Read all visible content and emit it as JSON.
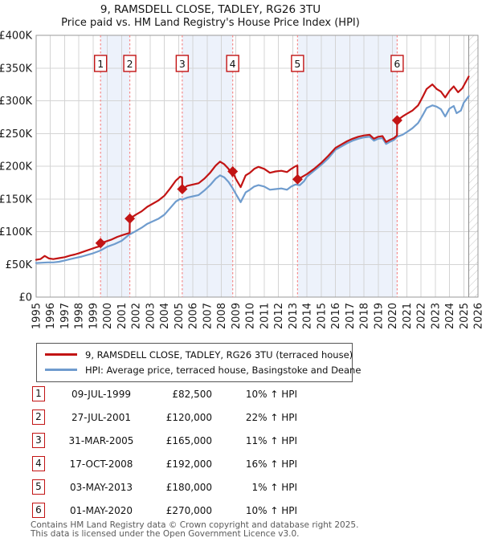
{
  "title": {
    "line1": "9, RAMSDELL CLOSE, TADLEY, RG26 3TU",
    "line2": "Price paid vs. HM Land Registry's House Price Index (HPI)"
  },
  "legend": [
    {
      "label": "9, RAMSDELL CLOSE, TADLEY, RG26 3TU (terraced house)",
      "color": "#c21414",
      "thickness": 3
    },
    {
      "label": "HPI: Average price, terraced house, Basingstoke and Deane",
      "color": "#6f9cce",
      "thickness": 2.5
    }
  ],
  "footer": {
    "line1": "Contains HM Land Registry data © Crown copyright and database right 2025.",
    "line2": "This data is licensed under the Open Government Licence v3.0."
  },
  "chart_data": {
    "type": "line",
    "title": "9, RAMSDELL CLOSE, TADLEY, RG26 3TU",
    "subtitle": "Price paid vs. HM Land Registry's House Price Index (HPI)",
    "grid": true,
    "legend_position": "below",
    "x_axis": {
      "min": 1995,
      "max": 2026,
      "tick_years": [
        1995,
        1996,
        1997,
        1998,
        1999,
        2000,
        2001,
        2002,
        2003,
        2004,
        2005,
        2006,
        2007,
        2008,
        2009,
        2010,
        2011,
        2012,
        2013,
        2014,
        2015,
        2016,
        2017,
        2018,
        2019,
        2020,
        2021,
        2022,
        2023,
        2024,
        2025,
        2026
      ]
    },
    "y_axis": {
      "min": 0,
      "max": 400000,
      "tick_step": 50000,
      "tick_labels": [
        "£0",
        "£50K",
        "£100K",
        "£150K",
        "£200K",
        "£250K",
        "£300K",
        "£350K",
        "£400K"
      ]
    },
    "colors": {
      "price_line": "#c21414",
      "hpi_line": "#6f9cce",
      "sale_marker": "#c21414",
      "dashed_line": "#f58a8a",
      "band_fill": "#edf2fb",
      "grid": "#d4d4d4",
      "plot_border": "#9a9a9a",
      "hatch_line": "#c6c6c6",
      "hatch_edge": "#8f8f8f",
      "marker_box_border": "#c21414",
      "axis_text": "#1a1a1a"
    },
    "ownership_bands": [
      [
        1999.52,
        2001.57
      ],
      [
        2005.25,
        2008.79
      ],
      [
        2013.34,
        2020.33
      ]
    ],
    "no_data_hatch_from": 2025.35,
    "sales": [
      {
        "n": 1,
        "date": "09-JUL-1999",
        "year": 1999.52,
        "price": 82500,
        "price_label": "£82,500",
        "hpi_diff": "10% ↑ HPI"
      },
      {
        "n": 2,
        "date": "27-JUL-2001",
        "year": 2001.57,
        "price": 120000,
        "price_label": "£120,000",
        "hpi_diff": "22% ↑ HPI"
      },
      {
        "n": 3,
        "date": "31-MAR-2005",
        "year": 2005.25,
        "price": 165000,
        "price_label": "£165,000",
        "hpi_diff": "11% ↑ HPI"
      },
      {
        "n": 4,
        "date": "17-OCT-2008",
        "year": 2008.79,
        "price": 192000,
        "price_label": "£192,000",
        "hpi_diff": "16% ↑ HPI"
      },
      {
        "n": 5,
        "date": "03-MAY-2013",
        "year": 2013.34,
        "price": 180000,
        "price_label": "£180,000",
        "hpi_diff": "1% ↑ HPI"
      },
      {
        "n": 6,
        "date": "01-MAY-2020",
        "year": 2020.33,
        "price": 270000,
        "price_label": "£270,000",
        "hpi_diff": "10% ↑ HPI"
      }
    ],
    "series": [
      {
        "name": "9, RAMSDELL CLOSE, TADLEY, RG26 3TU (terraced house)",
        "color": "#c21414",
        "width": 2.2,
        "points": [
          [
            1995.0,
            57000
          ],
          [
            1995.3,
            58000
          ],
          [
            1995.6,
            63000
          ],
          [
            1995.9,
            59000
          ],
          [
            1996.2,
            58000
          ],
          [
            1996.6,
            59500
          ],
          [
            1997.0,
            61000
          ],
          [
            1997.4,
            63500
          ],
          [
            1997.7,
            65000
          ],
          [
            1998.0,
            67000
          ],
          [
            1998.4,
            70000
          ],
          [
            1998.8,
            73000
          ],
          [
            1999.2,
            76000
          ],
          [
            1999.51,
            78000
          ],
          [
            1999.52,
            82500
          ],
          [
            1999.9,
            85000
          ],
          [
            2000.3,
            88000
          ],
          [
            2000.7,
            92000
          ],
          [
            2001.1,
            95000
          ],
          [
            2001.56,
            98000
          ],
          [
            2001.57,
            120000
          ],
          [
            2002.0,
            126000
          ],
          [
            2002.4,
            131000
          ],
          [
            2002.8,
            138000
          ],
          [
            2003.2,
            143000
          ],
          [
            2003.6,
            148000
          ],
          [
            2004.0,
            155000
          ],
          [
            2004.4,
            166000
          ],
          [
            2004.8,
            178000
          ],
          [
            2005.1,
            184000
          ],
          [
            2005.24,
            183000
          ],
          [
            2005.25,
            165000
          ],
          [
            2005.6,
            170000
          ],
          [
            2006.0,
            172000
          ],
          [
            2006.4,
            174000
          ],
          [
            2006.8,
            181000
          ],
          [
            2007.2,
            190000
          ],
          [
            2007.6,
            201000
          ],
          [
            2007.9,
            207000
          ],
          [
            2008.2,
            203000
          ],
          [
            2008.5,
            196000
          ],
          [
            2008.78,
            185000
          ],
          [
            2008.79,
            192000
          ],
          [
            2009.0,
            181000
          ],
          [
            2009.35,
            168000
          ],
          [
            2009.7,
            186000
          ],
          [
            2010.0,
            190000
          ],
          [
            2010.3,
            196000
          ],
          [
            2010.6,
            199000
          ],
          [
            2011.0,
            196000
          ],
          [
            2011.4,
            190000
          ],
          [
            2011.8,
            192000
          ],
          [
            2012.2,
            193000
          ],
          [
            2012.6,
            191000
          ],
          [
            2012.9,
            196000
          ],
          [
            2013.2,
            200000
          ],
          [
            2013.33,
            201000
          ],
          [
            2013.34,
            181000
          ],
          [
            2013.6,
            183000
          ],
          [
            2014.0,
            188000
          ],
          [
            2014.5,
            196000
          ],
          [
            2015.0,
            205000
          ],
          [
            2015.5,
            216000
          ],
          [
            2016.0,
            228000
          ],
          [
            2016.4,
            233000
          ],
          [
            2016.8,
            238000
          ],
          [
            2017.2,
            242000
          ],
          [
            2017.6,
            245000
          ],
          [
            2018.0,
            247000
          ],
          [
            2018.4,
            248000
          ],
          [
            2018.7,
            242000
          ],
          [
            2019.0,
            245000
          ],
          [
            2019.3,
            246000
          ],
          [
            2019.55,
            237000
          ],
          [
            2019.8,
            240000
          ],
          [
            2020.1,
            243000
          ],
          [
            2020.32,
            247000
          ],
          [
            2020.33,
            270000
          ],
          [
            2020.7,
            276000
          ],
          [
            2021.0,
            280000
          ],
          [
            2021.4,
            285000
          ],
          [
            2021.8,
            293000
          ],
          [
            2022.1,
            305000
          ],
          [
            2022.4,
            318000
          ],
          [
            2022.8,
            325000
          ],
          [
            2023.1,
            318000
          ],
          [
            2023.4,
            314000
          ],
          [
            2023.7,
            305000
          ],
          [
            2024.0,
            315000
          ],
          [
            2024.3,
            322000
          ],
          [
            2024.6,
            313000
          ],
          [
            2024.9,
            319000
          ],
          [
            2025.1,
            327000
          ],
          [
            2025.35,
            337000
          ]
        ]
      },
      {
        "name": "HPI: Average price, terraced house, Basingstoke and Deane",
        "color": "#6f9cce",
        "width": 2.2,
        "points": [
          [
            1995.0,
            52000
          ],
          [
            1995.4,
            52500
          ],
          [
            1995.8,
            53000
          ],
          [
            1996.2,
            53000
          ],
          [
            1996.6,
            54000
          ],
          [
            1997.0,
            56000
          ],
          [
            1997.4,
            58000
          ],
          [
            1997.8,
            60000
          ],
          [
            1998.2,
            62000
          ],
          [
            1998.6,
            64500
          ],
          [
            1999.0,
            67000
          ],
          [
            1999.5,
            71000
          ],
          [
            2000.0,
            77000
          ],
          [
            2000.5,
            81000
          ],
          [
            2001.0,
            86000
          ],
          [
            2001.5,
            95000
          ],
          [
            2002.0,
            101000
          ],
          [
            2002.4,
            106000
          ],
          [
            2002.8,
            112000
          ],
          [
            2003.2,
            116000
          ],
          [
            2003.6,
            120000
          ],
          [
            2004.0,
            126000
          ],
          [
            2004.4,
            136000
          ],
          [
            2004.8,
            146000
          ],
          [
            2005.1,
            150000
          ],
          [
            2005.25,
            149000
          ],
          [
            2005.6,
            152000
          ],
          [
            2006.0,
            154000
          ],
          [
            2006.4,
            156000
          ],
          [
            2006.8,
            163000
          ],
          [
            2007.2,
            171000
          ],
          [
            2007.6,
            181000
          ],
          [
            2007.9,
            186000
          ],
          [
            2008.2,
            183000
          ],
          [
            2008.5,
            176000
          ],
          [
            2008.8,
            166000
          ],
          [
            2009.0,
            158000
          ],
          [
            2009.35,
            145000
          ],
          [
            2009.7,
            160000
          ],
          [
            2010.0,
            164000
          ],
          [
            2010.3,
            169000
          ],
          [
            2010.6,
            171000
          ],
          [
            2011.0,
            169000
          ],
          [
            2011.4,
            164000
          ],
          [
            2011.8,
            165000
          ],
          [
            2012.2,
            166000
          ],
          [
            2012.6,
            164000
          ],
          [
            2012.9,
            169000
          ],
          [
            2013.2,
            172000
          ],
          [
            2013.5,
            171000
          ],
          [
            2013.8,
            177000
          ],
          [
            2014.0,
            184000
          ],
          [
            2014.5,
            193000
          ],
          [
            2015.0,
            202000
          ],
          [
            2015.5,
            212000
          ],
          [
            2016.0,
            225000
          ],
          [
            2016.4,
            230000
          ],
          [
            2016.8,
            235000
          ],
          [
            2017.2,
            239000
          ],
          [
            2017.6,
            242000
          ],
          [
            2018.0,
            244000
          ],
          [
            2018.4,
            245000
          ],
          [
            2018.7,
            239000
          ],
          [
            2019.0,
            242000
          ],
          [
            2019.3,
            243000
          ],
          [
            2019.55,
            234000
          ],
          [
            2019.8,
            237000
          ],
          [
            2020.1,
            240000
          ],
          [
            2020.33,
            245000
          ],
          [
            2020.7,
            248000
          ],
          [
            2021.0,
            252000
          ],
          [
            2021.4,
            258000
          ],
          [
            2021.8,
            266000
          ],
          [
            2022.1,
            277000
          ],
          [
            2022.4,
            289000
          ],
          [
            2022.8,
            293000
          ],
          [
            2023.1,
            291000
          ],
          [
            2023.4,
            287000
          ],
          [
            2023.7,
            276000
          ],
          [
            2024.0,
            288000
          ],
          [
            2024.3,
            292000
          ],
          [
            2024.5,
            281000
          ],
          [
            2024.8,
            285000
          ],
          [
            2025.0,
            297000
          ],
          [
            2025.35,
            307000
          ]
        ]
      }
    ]
  }
}
